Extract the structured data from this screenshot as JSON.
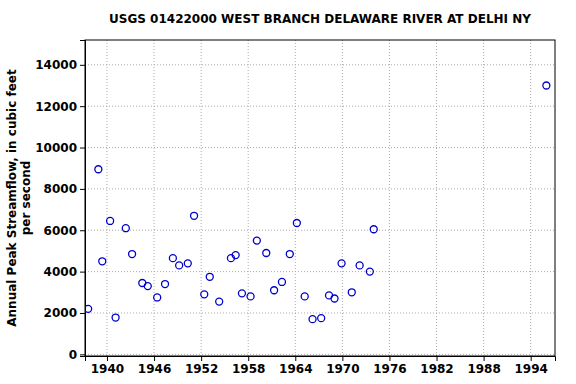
{
  "chart_data": {
    "type": "scatter",
    "title": "USGS 01422000 WEST BRANCH DELAWARE RIVER AT DELHI NY",
    "y_label": [
      "Annual Peak Streamflow, in cubic feet",
      "per second"
    ],
    "x": [
      1937.6,
      1938.9,
      1939.4,
      1940.4,
      1941.1,
      1942.4,
      1943.2,
      1944.5,
      1945.2,
      1946.4,
      1947.4,
      1948.4,
      1949.2,
      1950.3,
      1951.1,
      1952.4,
      1953.1,
      1954.3,
      1955.8,
      1956.4,
      1957.2,
      1958.3,
      1959.1,
      1960.3,
      1961.3,
      1962.3,
      1963.3,
      1964.2,
      1965.2,
      1966.2,
      1967.3,
      1968.3,
      1969.0,
      1969.9,
      1971.2,
      1972.2,
      1973.5,
      1974.0,
      1996.0
    ],
    "values": [
      2200,
      8950,
      4500,
      6450,
      1780,
      6100,
      4850,
      3450,
      3300,
      2750,
      3400,
      4650,
      4300,
      4400,
      6700,
      2900,
      3750,
      2550,
      4650,
      4800,
      2950,
      2800,
      5500,
      4900,
      3100,
      3500,
      4850,
      6350,
      2800,
      1700,
      1750,
      2850,
      2700,
      4400,
      3000,
      4300,
      4000,
      6050,
      13000
    ],
    "color": "#0000cc",
    "marker": "circle",
    "grid": true,
    "xlim": [
      1937.2,
      1997.1
    ],
    "ylim": [
      -80,
      15200
    ],
    "xticks": [
      1940,
      1946,
      1952,
      1958,
      1964,
      1970,
      1976,
      1982,
      1988,
      1994
    ],
    "yticks": [
      0,
      2000,
      4000,
      6000,
      8000,
      10000,
      12000,
      14000
    ]
  }
}
